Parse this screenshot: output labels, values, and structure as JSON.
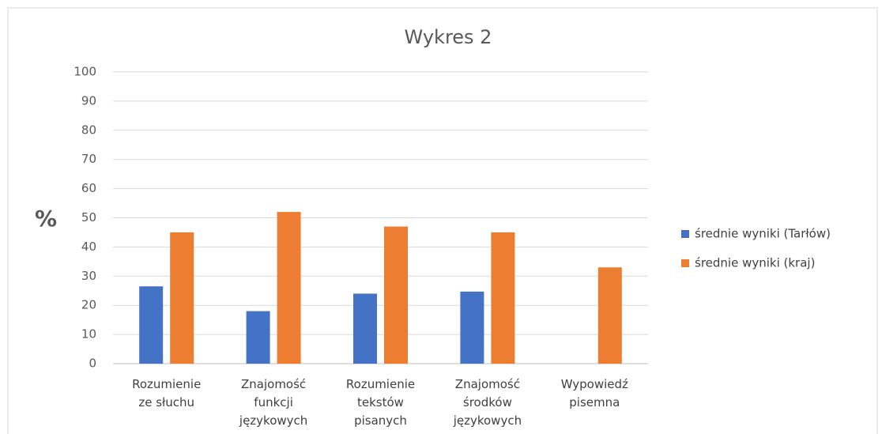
{
  "chart_data": {
    "type": "bar",
    "title": "Wykres 2",
    "y_label": "%",
    "categories": [
      "Rozumienie ze słuchu",
      "Znajomość funkcji językowych",
      "Rozumienie tekstów pisanych",
      "Znajomość środków językowych",
      "Wypowiedź pisemna"
    ],
    "series": [
      {
        "name": "średnie wyniki (Tarłów)",
        "color": "#4472c4",
        "values": [
          26.5,
          18,
          24,
          24.7,
          null
        ]
      },
      {
        "name": "średnie wyniki (kraj)",
        "color": "#ed7d31",
        "values": [
          45,
          52,
          47,
          45,
          33
        ]
      }
    ],
    "ylim": [
      0,
      100
    ],
    "yticks": [
      0,
      10,
      20,
      30,
      40,
      50,
      60,
      70,
      80,
      90,
      100
    ],
    "grid": true,
    "legend": "right"
  }
}
